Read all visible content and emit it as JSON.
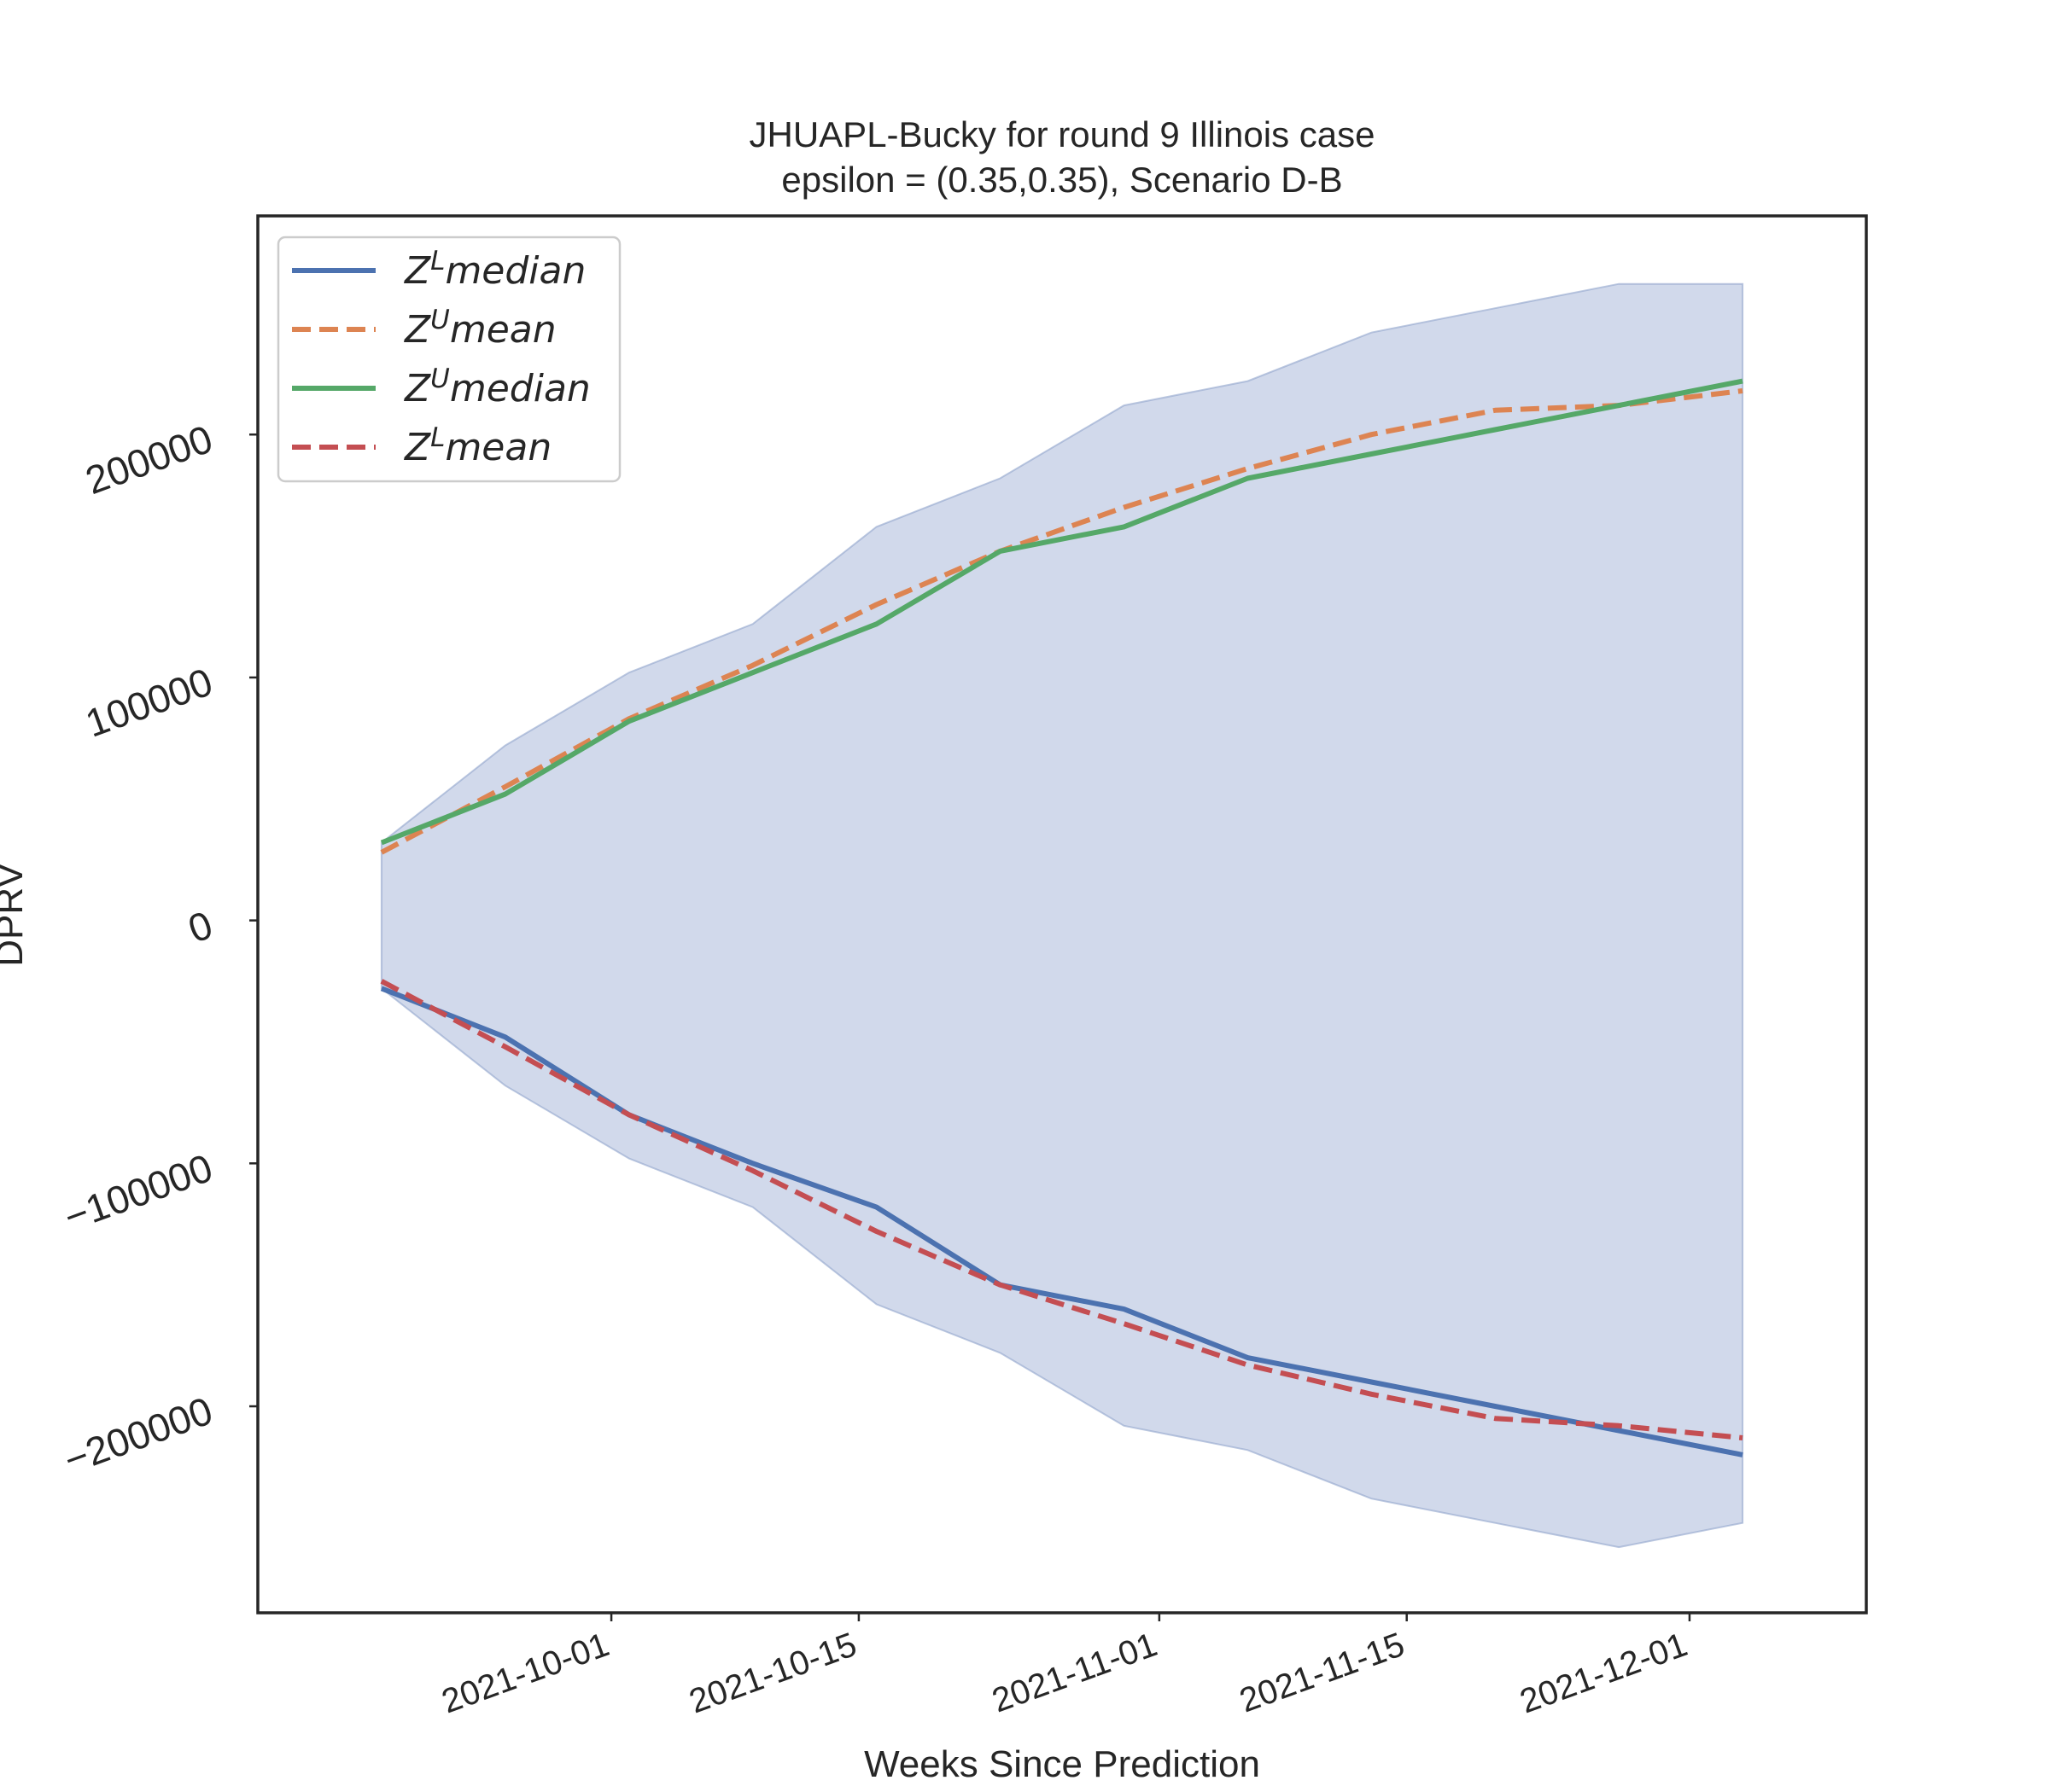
{
  "chart_data": {
    "type": "line",
    "title_line1": "JHUAPL-Bucky for round 9 Illinois  case",
    "title_line2": "epsilon = (0.35,0.35), Scenario D-B",
    "xlabel": "Weeks Since Prediction",
    "ylabel": "DPRV",
    "x": [
      "2021-09-18",
      "2021-09-25",
      "2021-10-02",
      "2021-10-09",
      "2021-10-16",
      "2021-10-23",
      "2021-10-30",
      "2021-11-06",
      "2021-11-13",
      "2021-11-20",
      "2021-11-27",
      "2021-12-04"
    ],
    "xlim": [
      "2021-09-11",
      "2021-12-11"
    ],
    "ylim": [
      -285000,
      290000
    ],
    "xticks": [
      {
        "date": "2021-10-01",
        "label": "2021-10-01"
      },
      {
        "date": "2021-10-15",
        "label": "2021-10-15"
      },
      {
        "date": "2021-11-01",
        "label": "2021-11-01"
      },
      {
        "date": "2021-11-15",
        "label": "2021-11-15"
      },
      {
        "date": "2021-12-01",
        "label": "2021-12-01"
      }
    ],
    "yticks": [
      {
        "value": -200000,
        "label": "−200000"
      },
      {
        "value": -100000,
        "label": "−100000"
      },
      {
        "value": 0,
        "label": "0"
      },
      {
        "value": 100000,
        "label": "100000"
      },
      {
        "value": 200000,
        "label": "200000"
      }
    ],
    "band": {
      "upper": [
        32000,
        72000,
        102000,
        122000,
        162000,
        182000,
        212000,
        222000,
        242000,
        252000,
        262000,
        262000
      ],
      "lower": [
        -28000,
        -68000,
        -98000,
        -118000,
        -158000,
        -178000,
        -208000,
        -218000,
        -238000,
        -248000,
        -258000,
        -248000
      ],
      "color": "#b9c5e0"
    },
    "series": [
      {
        "name": "Z^L median",
        "legend_base": "Z",
        "legend_sup": "L",
        "legend_rest": "median",
        "color": "#4c72b0",
        "dashed": false,
        "values": [
          -28000,
          -48000,
          -80000,
          -100000,
          -118000,
          -150000,
          -160000,
          -180000,
          -190000,
          -200000,
          -210000,
          -220000
        ]
      },
      {
        "name": "Z^U mean",
        "legend_base": "Z",
        "legend_sup": "U",
        "legend_rest": "mean",
        "color": "#dd8452",
        "dashed": true,
        "values": [
          28000,
          55000,
          83000,
          105000,
          130000,
          152000,
          170000,
          186000,
          200000,
          210000,
          212000,
          218000
        ]
      },
      {
        "name": "Z^U median",
        "legend_base": "Z",
        "legend_sup": "U",
        "legend_rest": "median",
        "color": "#55a868",
        "dashed": false,
        "values": [
          32000,
          52000,
          82000,
          102000,
          122000,
          152000,
          162000,
          182000,
          192000,
          202000,
          212000,
          222000
        ]
      },
      {
        "name": "Z^L mean",
        "legend_base": "Z",
        "legend_sup": "L",
        "legend_rest": "mean",
        "color": "#c44e52",
        "dashed": true,
        "values": [
          -25000,
          -52000,
          -80000,
          -103000,
          -128000,
          -150000,
          -166000,
          -183000,
          -195000,
          -205000,
          -208000,
          -213000
        ]
      }
    ],
    "legend_position": "top-left",
    "grid": false
  }
}
